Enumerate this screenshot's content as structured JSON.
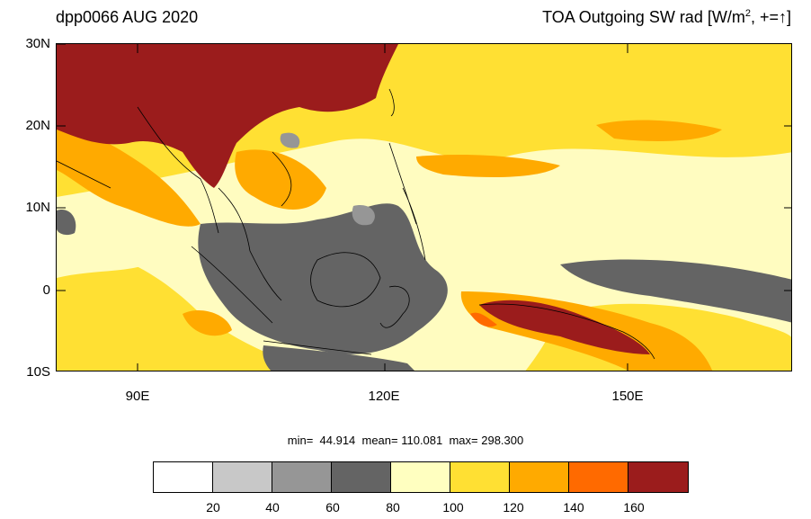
{
  "title_left": "dpp0066 AUG 2020",
  "title_right": {
    "prefix": "TOA Outgoing SW rad [W/m",
    "sup": "2",
    "suffix": ", +=",
    "arrow": "↑",
    "close": "]"
  },
  "lat_labels": [
    "30N",
    "20N",
    "10N",
    "0",
    "10S"
  ],
  "lon_labels": [
    "90E",
    "120E",
    "150E"
  ],
  "stats": {
    "text": "min=  44.914  mean= 110.081  max= 298.300"
  },
  "colorbar": {
    "colors": [
      "#ffffff",
      "#c8c8c8",
      "#969696",
      "#646464",
      "#ffffc0",
      "#ffe033",
      "#ffaa00",
      "#ff6a00",
      "#9b1c1c"
    ],
    "labels": [
      "20",
      "40",
      "60",
      "80",
      "100",
      "120",
      "140",
      "160"
    ]
  },
  "map": {
    "extent": {
      "lon_min": 80,
      "lon_max": 171,
      "lat_min": -10,
      "lat_max": 30
    },
    "ocean_color": "#fffcc0",
    "land_outline_color": "#000000"
  }
}
